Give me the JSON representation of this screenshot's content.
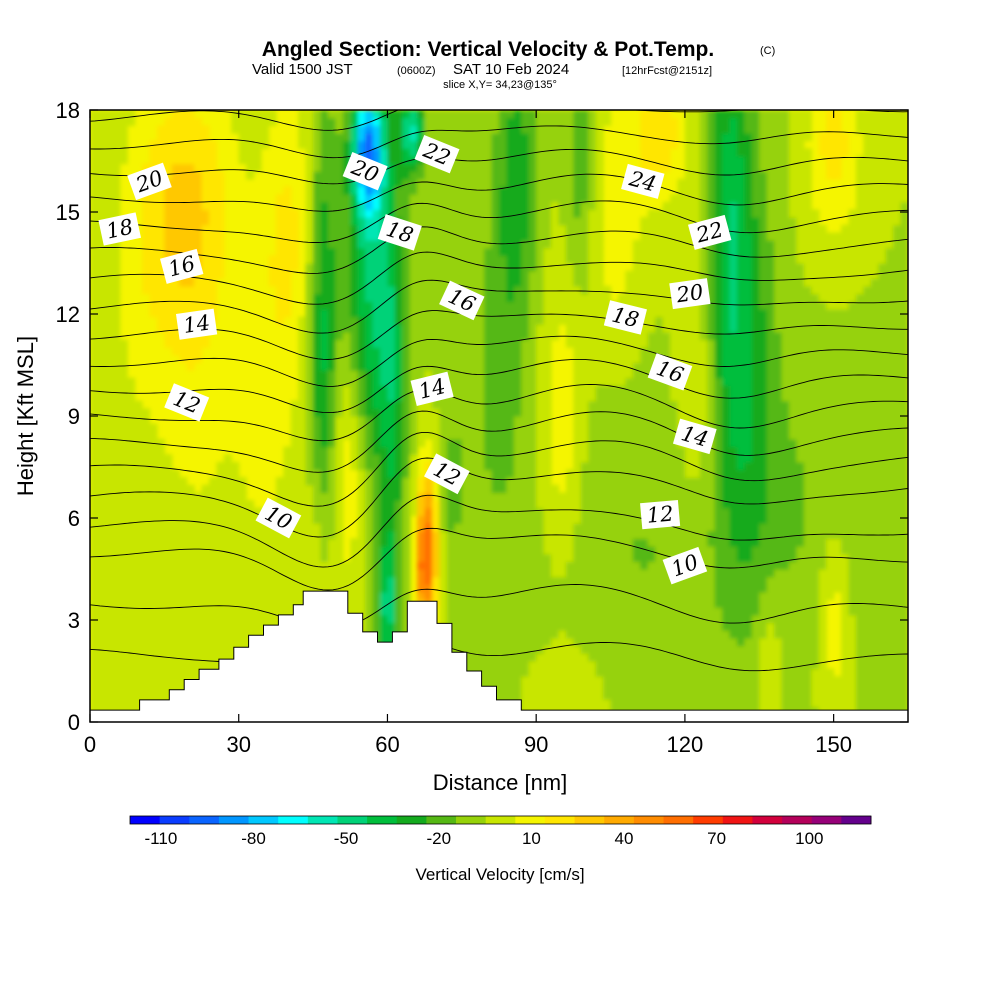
{
  "header": {
    "title": "Angled Section: Vertical Velocity & Pot.Temp.",
    "copyright": "(C)",
    "valid_prefix": "Valid 1500 JST",
    "valid_utc": "(0600Z)",
    "valid_date": "SAT 10 Feb 2024",
    "forecast": "[12hrFcst@2151z]",
    "slice": "slice X,Y= 34,23@135°"
  },
  "chart_data": {
    "type": "heatmap",
    "xlabel": "Distance [nm]",
    "ylabel": "Height [Kft MSL]",
    "xlim": [
      0,
      165
    ],
    "ylim": [
      0,
      18
    ],
    "x_ticks": [
      "0",
      "30",
      "60",
      "90",
      "120",
      "150"
    ],
    "x_tick_values": [
      0,
      30,
      60,
      90,
      120,
      150
    ],
    "y_ticks": [
      "0",
      "3",
      "6",
      "9",
      "12",
      "15",
      "18"
    ],
    "y_tick_values": [
      0,
      3,
      6,
      9,
      12,
      15,
      18
    ],
    "colorbar": {
      "label": "Vertical Velocity [cm/s]",
      "range": [
        -120,
        120
      ],
      "step": 10,
      "tick_labels": [
        "-110",
        "-80",
        "-50",
        "-20",
        "10",
        "40",
        "70",
        "100"
      ],
      "tick_values": [
        -110,
        -80,
        -50,
        -20,
        10,
        40,
        70,
        100
      ],
      "colors": [
        "#0000ff",
        "#0a3cff",
        "#0a64ff",
        "#0096ff",
        "#00c8ff",
        "#00ffff",
        "#00e6b4",
        "#00d278",
        "#00be3c",
        "#14aa1e",
        "#55b814",
        "#96d20a",
        "#c8e600",
        "#f5f500",
        "#ffe600",
        "#ffc800",
        "#ffaa00",
        "#ff8c00",
        "#ff6e00",
        "#ff3c00",
        "#f01414",
        "#d2003c",
        "#b4005a",
        "#960078",
        "#64008c"
      ]
    },
    "terrain_profile": [
      [
        0,
        0.35
      ],
      [
        10,
        0.35
      ],
      [
        10,
        0.65
      ],
      [
        16,
        0.65
      ],
      [
        16,
        0.95
      ],
      [
        19,
        0.95
      ],
      [
        19,
        1.25
      ],
      [
        22,
        1.25
      ],
      [
        22,
        1.55
      ],
      [
        26,
        1.55
      ],
      [
        26,
        1.85
      ],
      [
        29,
        1.85
      ],
      [
        29,
        2.2
      ],
      [
        32,
        2.2
      ],
      [
        32,
        2.55
      ],
      [
        35,
        2.55
      ],
      [
        35,
        2.85
      ],
      [
        38,
        2.85
      ],
      [
        38,
        3.15
      ],
      [
        41,
        3.15
      ],
      [
        41,
        3.45
      ],
      [
        43,
        3.45
      ],
      [
        43,
        3.85
      ],
      [
        52,
        3.85
      ],
      [
        52,
        3.2
      ],
      [
        55,
        3.2
      ],
      [
        55,
        2.65
      ],
      [
        58,
        2.65
      ],
      [
        58,
        2.35
      ],
      [
        61,
        2.35
      ],
      [
        61,
        2.65
      ],
      [
        64,
        2.65
      ],
      [
        64,
        3.55
      ],
      [
        70,
        3.55
      ],
      [
        70,
        2.9
      ],
      [
        73,
        2.9
      ],
      [
        73,
        2.05
      ],
      [
        76,
        2.05
      ],
      [
        76,
        1.5
      ],
      [
        79,
        1.5
      ],
      [
        79,
        1.05
      ],
      [
        82,
        1.05
      ],
      [
        82,
        0.65
      ],
      [
        87,
        0.65
      ],
      [
        87,
        0.35
      ],
      [
        165,
        0.35
      ]
    ],
    "updraft_cells": [
      {
        "x": 68,
        "y": 5.2,
        "sx": 1.6,
        "sy": 1.7,
        "w": 62
      },
      {
        "x": 67,
        "y": 4.3,
        "sx": 1.3,
        "sy": 0.9,
        "w": 20
      },
      {
        "x": 52,
        "y": 7.2,
        "sx": 2.5,
        "sy": 2.4,
        "w": 20
      },
      {
        "x": 95,
        "y": 8.5,
        "sx": 3.2,
        "sy": 3.0,
        "w": 20
      },
      {
        "x": 46,
        "y": 5.0,
        "sx": 2.0,
        "sy": 2.2,
        "w": 16
      },
      {
        "x": 20,
        "y": 15.5,
        "sx": 7,
        "sy": 2.6,
        "w": 24
      },
      {
        "x": 12,
        "y": 13.0,
        "sx": 6,
        "sy": 4.0,
        "w": 13
      },
      {
        "x": 22,
        "y": 10.5,
        "sx": 5,
        "sy": 4.0,
        "w": 13
      },
      {
        "x": 35,
        "y": 9.0,
        "sx": 5,
        "sy": 3.5,
        "w": 13
      },
      {
        "x": 40,
        "y": 14.5,
        "sx": 4,
        "sy": 3.0,
        "w": 20
      },
      {
        "x": 115,
        "y": 17.3,
        "sx": 4,
        "sy": 1.5,
        "w": 26
      },
      {
        "x": 150,
        "y": 17.0,
        "sx": 4,
        "sy": 2.0,
        "w": 24
      },
      {
        "x": 106,
        "y": 15.0,
        "sx": 4,
        "sy": 3.0,
        "w": 16
      },
      {
        "x": 122,
        "y": 9.5,
        "sx": 3,
        "sy": 3.0,
        "w": 12
      },
      {
        "x": 150,
        "y": 3.0,
        "sx": 2.2,
        "sy": 2.0,
        "w": 18
      },
      {
        "x": 137,
        "y": 2.0,
        "sx": 1.8,
        "sy": 1.5,
        "w": 12
      },
      {
        "x": 97,
        "y": 1.0,
        "sx": 7,
        "sy": 1.2,
        "w": 8
      },
      {
        "x": 4,
        "y": 5.5,
        "sx": 3,
        "sy": 3.0,
        "w": 7
      }
    ],
    "downdraft_cells": [
      {
        "x": 56,
        "y": 16.8,
        "sx": 2.2,
        "sy": 1.3,
        "w": -70
      },
      {
        "x": 65,
        "y": 17.4,
        "sx": 1.8,
        "sy": 0.9,
        "w": -50
      },
      {
        "x": 57,
        "y": 13.5,
        "sx": 3.5,
        "sy": 4.0,
        "w": -42
      },
      {
        "x": 47,
        "y": 11.0,
        "sx": 2.0,
        "sy": 5.0,
        "w": -34
      },
      {
        "x": 61,
        "y": 9.5,
        "sx": 2.0,
        "sy": 3.5,
        "w": -26
      },
      {
        "x": 60,
        "y": 3.3,
        "sx": 1.5,
        "sy": 1.6,
        "w": -40
      },
      {
        "x": 86,
        "y": 16.0,
        "sx": 3.0,
        "sy": 3.0,
        "w": -25
      },
      {
        "x": 99,
        "y": 16.5,
        "sx": 2.0,
        "sy": 2.5,
        "w": -18
      },
      {
        "x": 129,
        "y": 15.0,
        "sx": 3.0,
        "sy": 4.5,
        "w": -32
      },
      {
        "x": 133,
        "y": 10.5,
        "sx": 4.0,
        "sy": 4.5,
        "w": -22
      },
      {
        "x": 82,
        "y": 10.5,
        "sx": 4.0,
        "sy": 3.5,
        "w": -12
      },
      {
        "x": 110,
        "y": 5.0,
        "sx": 20,
        "sy": 3.5,
        "w": -10
      },
      {
        "x": 145,
        "y": 6.5,
        "sx": 12,
        "sy": 3.0,
        "w": -8
      },
      {
        "x": 73,
        "y": 7.0,
        "sx": 2.0,
        "sy": 1.6,
        "w": -12
      }
    ],
    "isentropes": [
      {
        "base": 2.0,
        "amp": 0.6
      },
      {
        "base": 3.5,
        "amp": 0.9
      },
      {
        "base": 5.0,
        "amp": 1.1
      },
      {
        "base": 5.8,
        "amp": 1.2
      },
      {
        "base": 6.6,
        "amp": 1.3
      },
      {
        "base": 7.4,
        "amp": 1.3
      },
      {
        "base": 8.2,
        "amp": 1.2
      },
      {
        "base": 9.0,
        "amp": 1.1
      },
      {
        "base": 9.8,
        "amp": 1.0
      },
      {
        "base": 10.6,
        "amp": 0.9
      },
      {
        "base": 11.4,
        "amp": 0.8
      },
      {
        "base": 12.2,
        "amp": 0.8
      },
      {
        "base": 13.0,
        "amp": 0.8
      },
      {
        "base": 13.8,
        "amp": 0.8
      },
      {
        "base": 14.6,
        "amp": 0.8
      },
      {
        "base": 15.4,
        "amp": 0.7
      },
      {
        "base": 16.2,
        "amp": 0.6
      },
      {
        "base": 17.0,
        "amp": 0.5
      },
      {
        "base": 17.8,
        "amp": 0.4
      }
    ],
    "contour_labels": [
      {
        "text": "20",
        "x": 12,
        "y": 15.9,
        "angle": -20
      },
      {
        "text": "18",
        "x": 6,
        "y": 14.5,
        "angle": -12
      },
      {
        "text": "16",
        "x": 18.5,
        "y": 13.4,
        "angle": -15
      },
      {
        "text": "14",
        "x": 21.5,
        "y": 11.7,
        "angle": -8
      },
      {
        "text": "12",
        "x": 19.5,
        "y": 9.4,
        "angle": 22
      },
      {
        "text": "10",
        "x": 38,
        "y": 6.0,
        "angle": 28
      },
      {
        "text": "20",
        "x": 55.5,
        "y": 16.2,
        "angle": 22
      },
      {
        "text": "22",
        "x": 70,
        "y": 16.7,
        "angle": 22
      },
      {
        "text": "18",
        "x": 62.5,
        "y": 14.4,
        "angle": 18
      },
      {
        "text": "16",
        "x": 75,
        "y": 12.4,
        "angle": 25
      },
      {
        "text": "14",
        "x": 69,
        "y": 9.8,
        "angle": -14
      },
      {
        "text": "12",
        "x": 72,
        "y": 7.3,
        "angle": 28
      },
      {
        "text": "24",
        "x": 111.5,
        "y": 15.9,
        "angle": 15
      },
      {
        "text": "22",
        "x": 125,
        "y": 14.4,
        "angle": -15
      },
      {
        "text": "20",
        "x": 121,
        "y": 12.6,
        "angle": -8
      },
      {
        "text": "18",
        "x": 108,
        "y": 11.9,
        "angle": 14
      },
      {
        "text": "16",
        "x": 117,
        "y": 10.3,
        "angle": 20
      },
      {
        "text": "14",
        "x": 122,
        "y": 8.4,
        "angle": 16
      },
      {
        "text": "12",
        "x": 115,
        "y": 6.1,
        "angle": -5
      },
      {
        "text": "10",
        "x": 120,
        "y": 4.6,
        "angle": -20
      }
    ]
  }
}
